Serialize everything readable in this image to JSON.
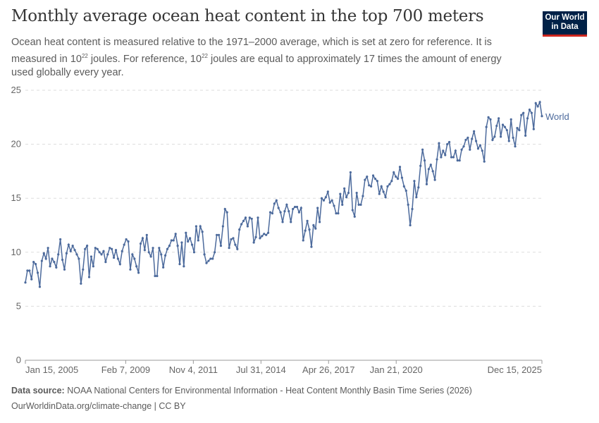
{
  "title": "Monthly average ocean heat content in the top 700 meters",
  "subtitle": {
    "part1": "Ocean heat content is measured relative to the 1971–2000 average, which is set at zero for reference. It is measured in 10",
    "sup1": "22",
    "part2": " joules. For reference, 10",
    "sup2": "22",
    "part3": " joules are equal to approximately 17 times the amount of energy used globally every year."
  },
  "logo": {
    "line1": "Our World",
    "line2": "in Data",
    "bg_color": "#002147",
    "accent_color": "#ce261e"
  },
  "footer": {
    "source_label": "Data source:",
    "source_text": " NOAA National Centers for Environmental Information - Heat Content Monthly Basin Time Series (2026)",
    "license": "OurWorldinData.org/climate-change | CC BY"
  },
  "chart_data": {
    "type": "line",
    "title": "Monthly average ocean heat content in the top 700 meters",
    "xlabel": "",
    "ylabel": "",
    "ylim": [
      0,
      25
    ],
    "y_ticks": [
      0,
      5,
      10,
      15,
      20,
      25
    ],
    "x_ticks": [
      {
        "date": "2005-01-15",
        "label": "Jan 15, 2005"
      },
      {
        "date": "2009-02-07",
        "label": "Feb 7, 2009"
      },
      {
        "date": "2011-11-04",
        "label": "Nov 4, 2011"
      },
      {
        "date": "2014-07-31",
        "label": "Jul 31, 2014"
      },
      {
        "date": "2017-04-26",
        "label": "Apr 26, 2017"
      },
      {
        "date": "2020-01-21",
        "label": "Jan 21, 2020"
      },
      {
        "date": "2025-12-15",
        "label": "Dec 15, 2025"
      }
    ],
    "x_start": "2005-01-15",
    "x_end": "2025-12-15",
    "x_interval": "monthly",
    "grid": "horizontal dashed",
    "legend": "inline-right",
    "series": [
      {
        "name": "World",
        "color": "#4c6a9c",
        "values": [
          7.2,
          8.3,
          8.3,
          7.5,
          9.1,
          8.9,
          8.1,
          6.8,
          9.2,
          9.9,
          9.4,
          10.4,
          8.7,
          9.4,
          9.1,
          8.6,
          9.8,
          11.2,
          9.3,
          8.4,
          9.9,
          10.7,
          10.1,
          10.6,
          10.2,
          9.8,
          9.4,
          7.1,
          8.4,
          10.3,
          10.6,
          7.7,
          9.6,
          8.7,
          10.4,
          10.3,
          10.0,
          9.8,
          10.1,
          9.1,
          9.8,
          10.4,
          10.3,
          9.5,
          10.2,
          9.4,
          8.9,
          10.1,
          10.7,
          11.2,
          11.0,
          8.4,
          9.8,
          9.4,
          8.7,
          8.1,
          10.8,
          11.3,
          10.2,
          11.6,
          10.0,
          9.6,
          10.4,
          7.8,
          7.8,
          10.4,
          9.8,
          8.6,
          9.7,
          10.3,
          10.6,
          11.1,
          11.1,
          11.7,
          10.6,
          8.9,
          10.9,
          8.7,
          11.8,
          11.0,
          11.3,
          10.7,
          10.0,
          12.4,
          11.1,
          12.4,
          11.9,
          9.8,
          9.0,
          9.2,
          9.4,
          9.4,
          10.0,
          11.6,
          11.6,
          10.6,
          12.4,
          14.0,
          13.7,
          10.4,
          11.2,
          11.3,
          10.7,
          10.3,
          12.1,
          12.6,
          12.9,
          13.2,
          12.4,
          13.2,
          13.1,
          10.9,
          11.4,
          13.2,
          11.3,
          11.5,
          11.7,
          11.6,
          11.8,
          13.7,
          13.6,
          14.5,
          14.8,
          14.1,
          13.7,
          12.8,
          13.8,
          14.4,
          13.8,
          12.8,
          14.0,
          14.2,
          14.2,
          13.7,
          14.1,
          11.1,
          12.0,
          12.9,
          12.1,
          10.5,
          12.5,
          12.2,
          14.1,
          12.8,
          15.0,
          14.8,
          15.1,
          15.6,
          14.6,
          14.8,
          14.3,
          13.6,
          13.6,
          15.4,
          14.4,
          15.9,
          15.1,
          15.5,
          17.4,
          13.9,
          13.3,
          15.5,
          14.4,
          14.4,
          15.2,
          16.7,
          17.0,
          16.2,
          16.1,
          17.1,
          16.8,
          16.6,
          15.4,
          16.1,
          15.6,
          15.1,
          16.1,
          16.3,
          16.6,
          17.4,
          17.0,
          16.8,
          17.9,
          16.9,
          16.1,
          15.7,
          14.4,
          12.5,
          14.0,
          16.6,
          15.1,
          16.0,
          18.0,
          19.5,
          18.5,
          16.3,
          17.7,
          18.1,
          17.5,
          16.7,
          18.6,
          20.1,
          18.8,
          19.4,
          19.0,
          20.0,
          20.2,
          18.8,
          18.8,
          19.4,
          18.5,
          18.5,
          19.5,
          19.8,
          20.4,
          20.6,
          19.5,
          20.5,
          21.2,
          20.3,
          19.6,
          19.9,
          19.4,
          18.4,
          21.6,
          22.5,
          22.3,
          20.4,
          20.7,
          21.7,
          22.4,
          20.7,
          21.8,
          21.6,
          21.3,
          20.3,
          22.3,
          20.6,
          19.8,
          21.5,
          21.3,
          22.7,
          22.9,
          20.8,
          22.4,
          23.2,
          22.9,
          21.4,
          23.8,
          23.5,
          23.9,
          22.6
        ]
      }
    ]
  }
}
